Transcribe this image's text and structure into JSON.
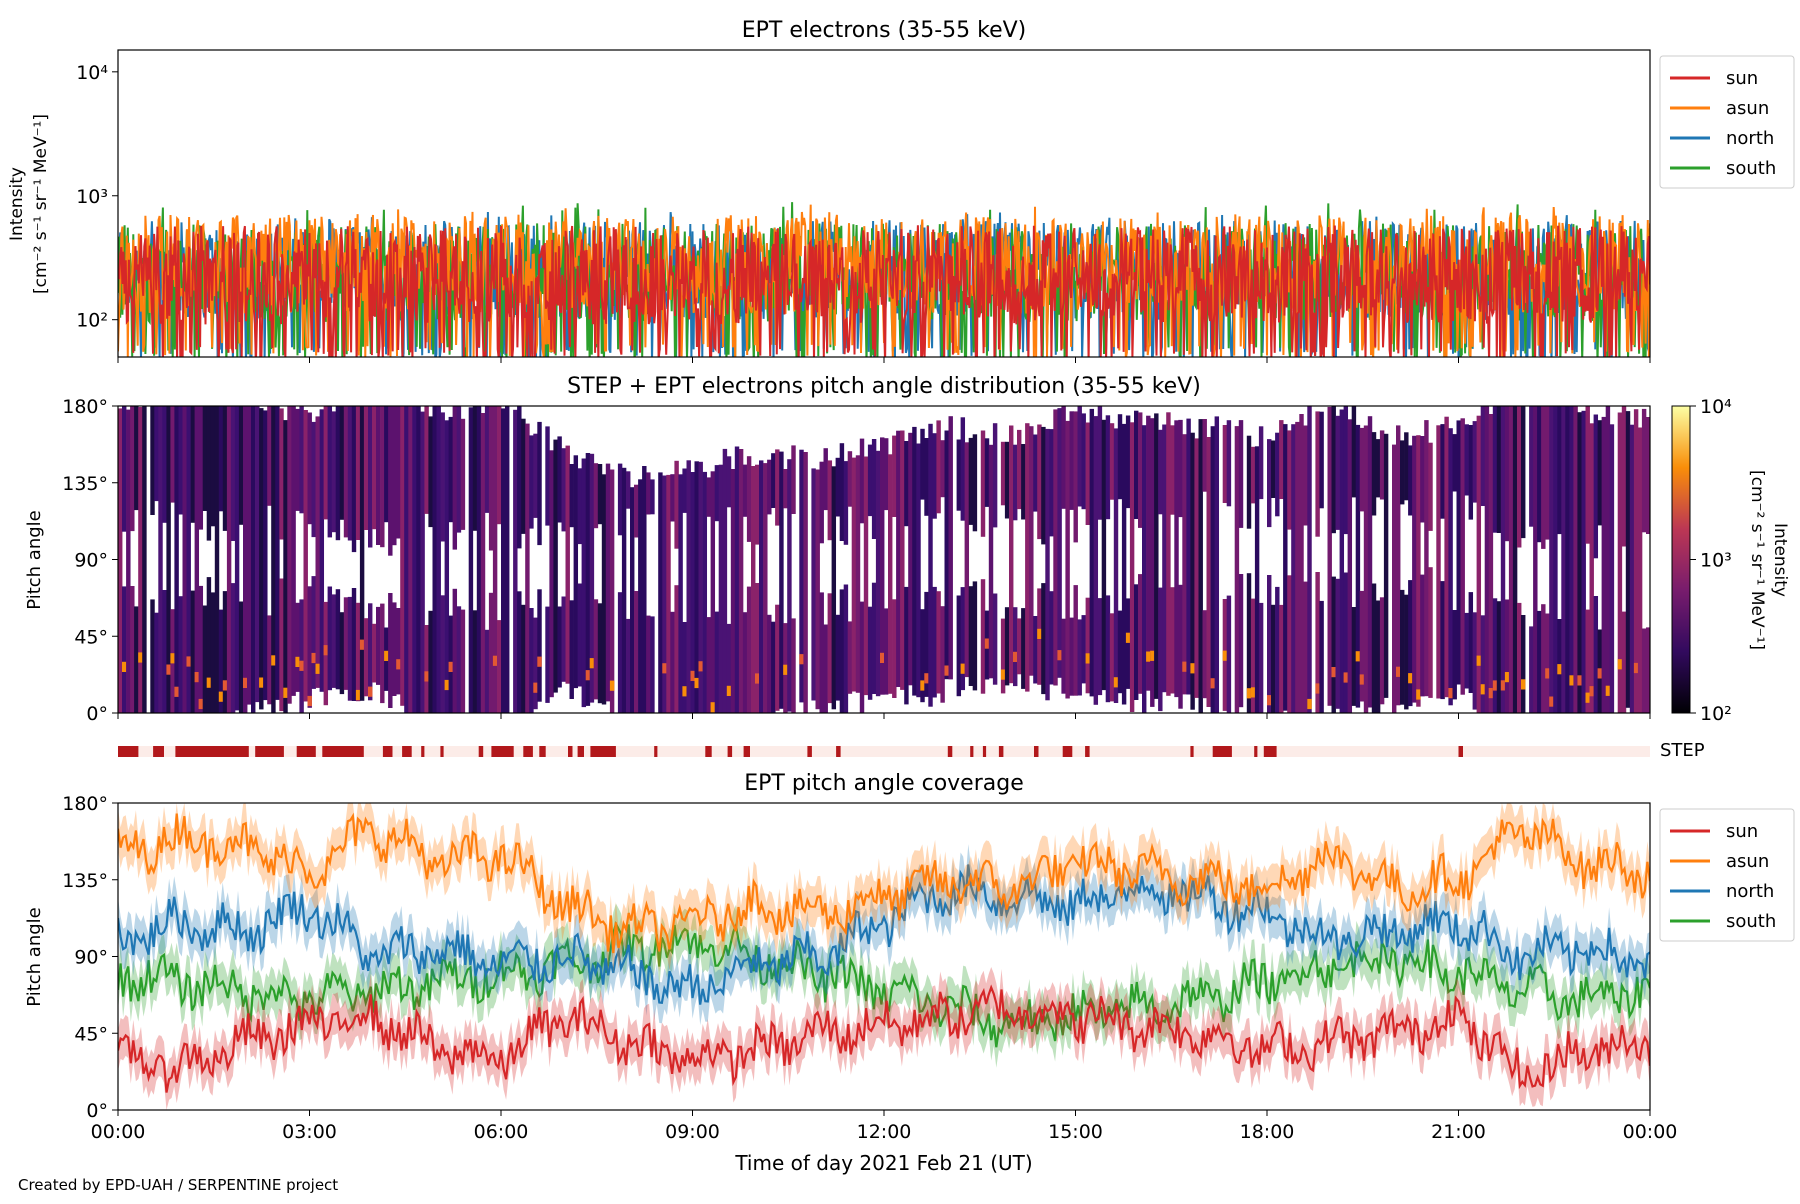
{
  "credit": "Created by EPD-UAH / SERPENTINE project",
  "time_axis": {
    "xlabel": "Time of day 2021 Feb 21 (UT)",
    "ticks": [
      "00:00",
      "03:00",
      "06:00",
      "09:00",
      "12:00",
      "15:00",
      "18:00",
      "21:00",
      "00:00"
    ],
    "range_hours": [
      0,
      24
    ]
  },
  "colors": {
    "sun": "#d62728",
    "asun": "#ff7f0e",
    "north": "#1f77b4",
    "south": "#2ca02c",
    "step_bar": "#b2181b",
    "step_bg": "#fcece8"
  },
  "chart_data": [
    {
      "type": "line",
      "title": "EPT electrons (35-55 keV)",
      "ylabel_1": "Intensity",
      "ylabel_2": "[cm⁻² s⁻¹ sr⁻¹ MeV⁻¹]",
      "yscale": "log",
      "ylim": [
        50,
        15000
      ],
      "yticks": [
        "10²",
        "10³",
        "10⁴"
      ],
      "ytick_values": [
        100,
        1000,
        10000
      ],
      "legend_position": "outside-right",
      "series": [
        {
          "name": "sun",
          "typical": 230,
          "min": 55,
          "max": 550
        },
        {
          "name": "asun",
          "typical": 280,
          "min": 60,
          "max": 850
        },
        {
          "name": "north",
          "typical": 250,
          "min": 55,
          "max": 750
        },
        {
          "name": "south",
          "typical": 240,
          "min": 55,
          "max": 900
        }
      ]
    },
    {
      "type": "heatmap",
      "title": "STEP + EPT electrons pitch angle distribution (35-55 keV)",
      "ylabel": "Pitch angle",
      "yticks": [
        "0°",
        "45°",
        "90°",
        "135°",
        "180°"
      ],
      "ylim": [
        0,
        180
      ],
      "colorbar": {
        "label_1": "Intensity",
        "label_2": "[cm⁻² s⁻¹ sr⁻¹ MeV⁻¹]",
        "scale": "log",
        "range": [
          100,
          10000
        ],
        "ticks": [
          "10²",
          "10³",
          "10⁴"
        ],
        "colormap": "inferno"
      }
    },
    {
      "type": "step_coverage",
      "label": "STEP",
      "intervals_hours": [
        [
          0.0,
          0.32
        ],
        [
          0.55,
          0.72
        ],
        [
          0.9,
          2.05
        ],
        [
          2.15,
          2.6
        ],
        [
          2.8,
          3.1
        ],
        [
          3.2,
          3.85
        ],
        [
          4.15,
          4.3
        ],
        [
          4.45,
          4.6
        ],
        [
          4.75,
          4.8
        ],
        [
          5.05,
          5.1
        ],
        [
          5.65,
          5.72
        ],
        [
          5.85,
          6.2
        ],
        [
          6.35,
          6.5
        ],
        [
          6.6,
          6.7
        ],
        [
          7.05,
          7.12
        ],
        [
          7.2,
          7.3
        ],
        [
          7.4,
          7.8
        ],
        [
          8.4,
          8.45
        ],
        [
          9.2,
          9.3
        ],
        [
          9.55,
          9.62
        ],
        [
          9.8,
          9.9
        ],
        [
          10.8,
          10.87
        ],
        [
          11.25,
          11.32
        ],
        [
          13.0,
          13.07
        ],
        [
          13.35,
          13.4
        ],
        [
          13.55,
          13.6
        ],
        [
          13.8,
          13.87
        ],
        [
          14.35,
          14.42
        ],
        [
          14.8,
          14.95
        ],
        [
          15.15,
          15.22
        ],
        [
          16.8,
          16.85
        ],
        [
          17.15,
          17.45
        ],
        [
          17.8,
          17.85
        ],
        [
          17.95,
          18.15
        ],
        [
          21.0,
          21.07
        ]
      ]
    },
    {
      "type": "line",
      "title": "EPT pitch angle coverage",
      "ylabel": "Pitch angle",
      "yticks": [
        "0°",
        "45°",
        "90°",
        "135°",
        "180°"
      ],
      "ylim": [
        0,
        180
      ],
      "legend_position": "outside-right",
      "series": [
        {
          "name": "sun",
          "x": [
            0,
            1,
            2,
            3,
            4,
            5,
            6,
            7,
            8,
            9,
            10,
            11,
            12,
            13,
            14,
            15,
            16,
            17,
            18,
            19,
            20,
            21,
            22,
            23,
            24
          ],
          "values": [
            30,
            25,
            40,
            50,
            55,
            35,
            30,
            55,
            40,
            30,
            35,
            45,
            50,
            55,
            60,
            55,
            50,
            45,
            35,
            40,
            45,
            55,
            20,
            35,
            40
          ]
        },
        {
          "name": "asun",
          "x": [
            0,
            1,
            2,
            3,
            4,
            5,
            6,
            7,
            8,
            9,
            10,
            11,
            12,
            13,
            14,
            15,
            16,
            17,
            18,
            19,
            20,
            21,
            22,
            23,
            24
          ],
          "values": [
            150,
            160,
            155,
            140,
            165,
            145,
            150,
            120,
            105,
            110,
            120,
            115,
            125,
            135,
            130,
            145,
            140,
            135,
            130,
            150,
            130,
            135,
            165,
            145,
            140
          ]
        },
        {
          "name": "north",
          "x": [
            0,
            1,
            2,
            3,
            4,
            5,
            6,
            7,
            8,
            9,
            10,
            11,
            12,
            13,
            14,
            15,
            16,
            17,
            18,
            19,
            20,
            21,
            22,
            23,
            24
          ],
          "values": [
            100,
            110,
            105,
            120,
            90,
            95,
            85,
            90,
            80,
            70,
            85,
            90,
            110,
            130,
            125,
            120,
            130,
            125,
            115,
            100,
            105,
            110,
            90,
            95,
            85
          ]
        },
        {
          "name": "south",
          "x": [
            0,
            1,
            2,
            3,
            4,
            5,
            6,
            7,
            8,
            9,
            10,
            11,
            12,
            13,
            14,
            15,
            16,
            17,
            18,
            19,
            20,
            21,
            22,
            23,
            24
          ],
          "values": [
            80,
            75,
            70,
            65,
            70,
            75,
            80,
            85,
            95,
            100,
            90,
            80,
            70,
            60,
            50,
            55,
            60,
            65,
            75,
            85,
            90,
            80,
            70,
            65,
            70
          ]
        }
      ]
    }
  ]
}
